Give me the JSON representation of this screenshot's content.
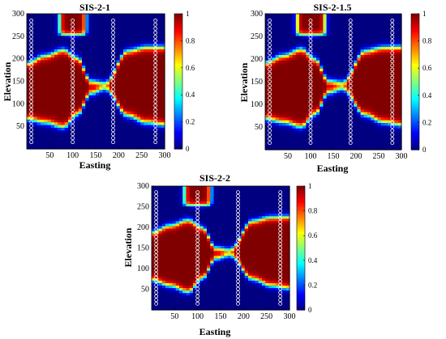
{
  "chart_data": [
    {
      "type": "heatmap",
      "title": "SIS-2-1",
      "xlabel": "Easting",
      "ylabel": "Elevation",
      "xlim": [
        0,
        300
      ],
      "ylim": [
        0,
        300
      ],
      "xticks": [
        50,
        100,
        150,
        200,
        250,
        300
      ],
      "yticks": [
        50,
        100,
        150,
        200,
        250,
        300
      ],
      "colorbar": {
        "range": [
          0,
          1
        ],
        "ticks": [
          0,
          0.2,
          0.4,
          0.6,
          0.8,
          1
        ],
        "colormap": "jet"
      },
      "high_region": {
        "upper_boundary_elevation": {
          "x": [
            0,
            40,
            80,
            110,
            140,
            170,
            220,
            260,
            300
          ],
          "y": [
            190,
            207,
            220,
            202,
            150,
            146,
            218,
            226,
            226
          ]
        },
        "lower_boundary_elevation": {
          "x": [
            0,
            40,
            80,
            110,
            140,
            170,
            220,
            260,
            300
          ],
          "y": [
            68,
            60,
            50,
            78,
            125,
            135,
            75,
            60,
            55
          ]
        },
        "top_channel_x_range": [
          72,
          128
        ]
      },
      "well_columns_x": [
        10,
        100,
        188,
        280
      ]
    },
    {
      "type": "heatmap",
      "title": "SIS-2-1.5",
      "xlabel": "Easting",
      "ylabel": "Elevation",
      "xlim": [
        0,
        300
      ],
      "ylim": [
        0,
        300
      ],
      "xticks": [
        50,
        100,
        150,
        200,
        250,
        300
      ],
      "yticks": [
        50,
        100,
        150,
        200,
        250,
        300
      ],
      "colorbar": {
        "range": [
          0,
          1
        ],
        "ticks": [
          0,
          0.2,
          0.4,
          0.6,
          0.8,
          1
        ],
        "colormap": "jet"
      },
      "high_region": {
        "upper_boundary_elevation": {
          "x": [
            0,
            40,
            80,
            110,
            140,
            170,
            220,
            260,
            300
          ],
          "y": [
            192,
            208,
            222,
            200,
            152,
            148,
            218,
            226,
            227
          ]
        },
        "lower_boundary_elevation": {
          "x": [
            0,
            40,
            80,
            110,
            140,
            170,
            220,
            260,
            300
          ],
          "y": [
            70,
            62,
            52,
            80,
            128,
            136,
            78,
            62,
            56
          ]
        },
        "top_channel_x_range": [
          70,
          132
        ]
      },
      "well_columns_x": [
        10,
        100,
        188,
        280
      ]
    },
    {
      "type": "heatmap",
      "title": "SIS-2-2",
      "xlabel": "Easting",
      "ylabel": "Elevation",
      "xlim": [
        0,
        300
      ],
      "ylim": [
        0,
        300
      ],
      "xticks": [
        50,
        100,
        150,
        200,
        250,
        300
      ],
      "yticks": [
        50,
        100,
        150,
        200,
        250,
        300
      ],
      "colorbar": {
        "range": [
          0,
          1
        ],
        "ticks": [
          0,
          0.2,
          0.4,
          0.6,
          0.8,
          1
        ],
        "colormap": "jet"
      },
      "high_region": {
        "upper_boundary_elevation": {
          "x": [
            0,
            40,
            80,
            110,
            140,
            170,
            220,
            260,
            300
          ],
          "y": [
            188,
            205,
            218,
            200,
            150,
            146,
            216,
            225,
            226
          ]
        },
        "lower_boundary_elevation": {
          "x": [
            0,
            40,
            80,
            110,
            140,
            170,
            220,
            260,
            300
          ],
          "y": [
            74,
            60,
            45,
            78,
            126,
            134,
            76,
            60,
            54
          ]
        },
        "top_channel_x_range": [
          72,
          128
        ]
      },
      "well_columns_x": [
        10,
        100,
        188,
        280
      ]
    }
  ]
}
